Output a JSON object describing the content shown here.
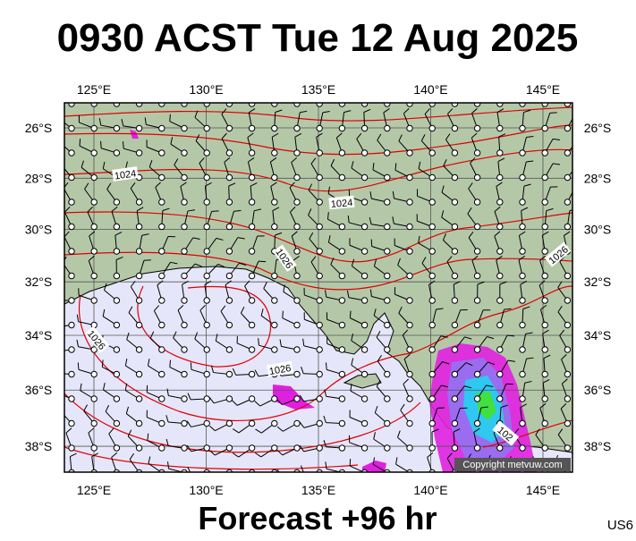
{
  "title": "0930 ACST Tue 12 Aug 2025",
  "footer": "Forecast +96 hr",
  "code": "US6",
  "copyright": "Copyright metvuw.com",
  "map": {
    "lon_ticks": [
      {
        "value": 125,
        "label": "125°E"
      },
      {
        "value": 130,
        "label": "130°E"
      },
      {
        "value": 135,
        "label": "135°E"
      },
      {
        "value": 140,
        "label": "140°E"
      },
      {
        "value": 145,
        "label": "145°E"
      }
    ],
    "lat_ticks": [
      {
        "value": -26,
        "label": "26°S"
      },
      {
        "value": -28,
        "label": "28°S"
      },
      {
        "value": -30,
        "label": "30°S"
      },
      {
        "value": -32,
        "label": "32°S"
      },
      {
        "value": -34,
        "label": "34°S"
      },
      {
        "value": -36,
        "label": "36°S"
      },
      {
        "value": -38,
        "label": "38°S"
      }
    ],
    "isobar_labels": [
      "1024",
      "1024",
      "1026",
      "1026",
      "1026",
      "1026",
      "102"
    ]
  }
}
